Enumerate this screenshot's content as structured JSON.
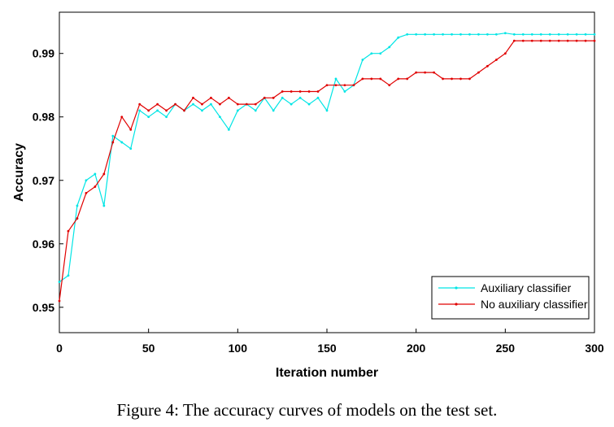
{
  "caption": "Figure 4: The accuracy curves of models on the test set.",
  "chart_data": {
    "type": "line",
    "title": "",
    "xlabel": "Iteration number",
    "ylabel": "Accuracy",
    "xlim": [
      0,
      300
    ],
    "ylim": [
      0.946,
      0.9965
    ],
    "xticks": [
      0,
      50,
      100,
      150,
      200,
      250,
      300
    ],
    "yticks": [
      0.95,
      0.96,
      0.97,
      0.98,
      0.99
    ],
    "grid": false,
    "legend_position": "bottom-right",
    "series": [
      {
        "name": "Auxiliary classifier",
        "color": "#00e5e5",
        "x": [
          0,
          5,
          10,
          15,
          20,
          25,
          30,
          35,
          40,
          45,
          50,
          55,
          60,
          65,
          70,
          75,
          80,
          85,
          90,
          95,
          100,
          105,
          110,
          115,
          120,
          125,
          130,
          135,
          140,
          145,
          150,
          155,
          160,
          165,
          170,
          175,
          180,
          185,
          190,
          195,
          200,
          205,
          210,
          215,
          220,
          225,
          230,
          235,
          240,
          245,
          250,
          255,
          260,
          265,
          270,
          275,
          280,
          285,
          290,
          295,
          300
        ],
        "y": [
          0.954,
          0.955,
          0.966,
          0.97,
          0.971,
          0.966,
          0.977,
          0.976,
          0.975,
          0.981,
          0.98,
          0.981,
          0.98,
          0.982,
          0.981,
          0.982,
          0.981,
          0.982,
          0.98,
          0.978,
          0.981,
          0.982,
          0.981,
          0.983,
          0.981,
          0.983,
          0.982,
          0.983,
          0.982,
          0.983,
          0.981,
          0.986,
          0.984,
          0.985,
          0.989,
          0.99,
          0.99,
          0.991,
          0.9925,
          0.993,
          0.993,
          0.993,
          0.993,
          0.993,
          0.993,
          0.993,
          0.993,
          0.993,
          0.993,
          0.993,
          0.9932,
          0.993,
          0.993,
          0.993,
          0.993,
          0.993,
          0.993,
          0.993,
          0.993,
          0.993,
          0.993
        ]
      },
      {
        "name": "No auxiliary classifier",
        "color": "#e00000",
        "x": [
          0,
          5,
          10,
          15,
          20,
          25,
          30,
          35,
          40,
          45,
          50,
          55,
          60,
          65,
          70,
          75,
          80,
          85,
          90,
          95,
          100,
          105,
          110,
          115,
          120,
          125,
          130,
          135,
          140,
          145,
          150,
          155,
          160,
          165,
          170,
          175,
          180,
          185,
          190,
          195,
          200,
          205,
          210,
          215,
          220,
          225,
          230,
          235,
          240,
          245,
          250,
          255,
          260,
          265,
          270,
          275,
          280,
          285,
          290,
          295,
          300
        ],
        "y": [
          0.951,
          0.962,
          0.964,
          0.968,
          0.969,
          0.971,
          0.976,
          0.98,
          0.978,
          0.982,
          0.981,
          0.982,
          0.981,
          0.982,
          0.981,
          0.983,
          0.982,
          0.983,
          0.982,
          0.983,
          0.982,
          0.982,
          0.982,
          0.983,
          0.983,
          0.984,
          0.984,
          0.984,
          0.984,
          0.984,
          0.985,
          0.985,
          0.985,
          0.985,
          0.986,
          0.986,
          0.986,
          0.985,
          0.986,
          0.986,
          0.987,
          0.987,
          0.987,
          0.986,
          0.986,
          0.986,
          0.986,
          0.987,
          0.988,
          0.989,
          0.99,
          0.992,
          0.992,
          0.992,
          0.992,
          0.992,
          0.992,
          0.992,
          0.992,
          0.992,
          0.992
        ]
      }
    ]
  }
}
